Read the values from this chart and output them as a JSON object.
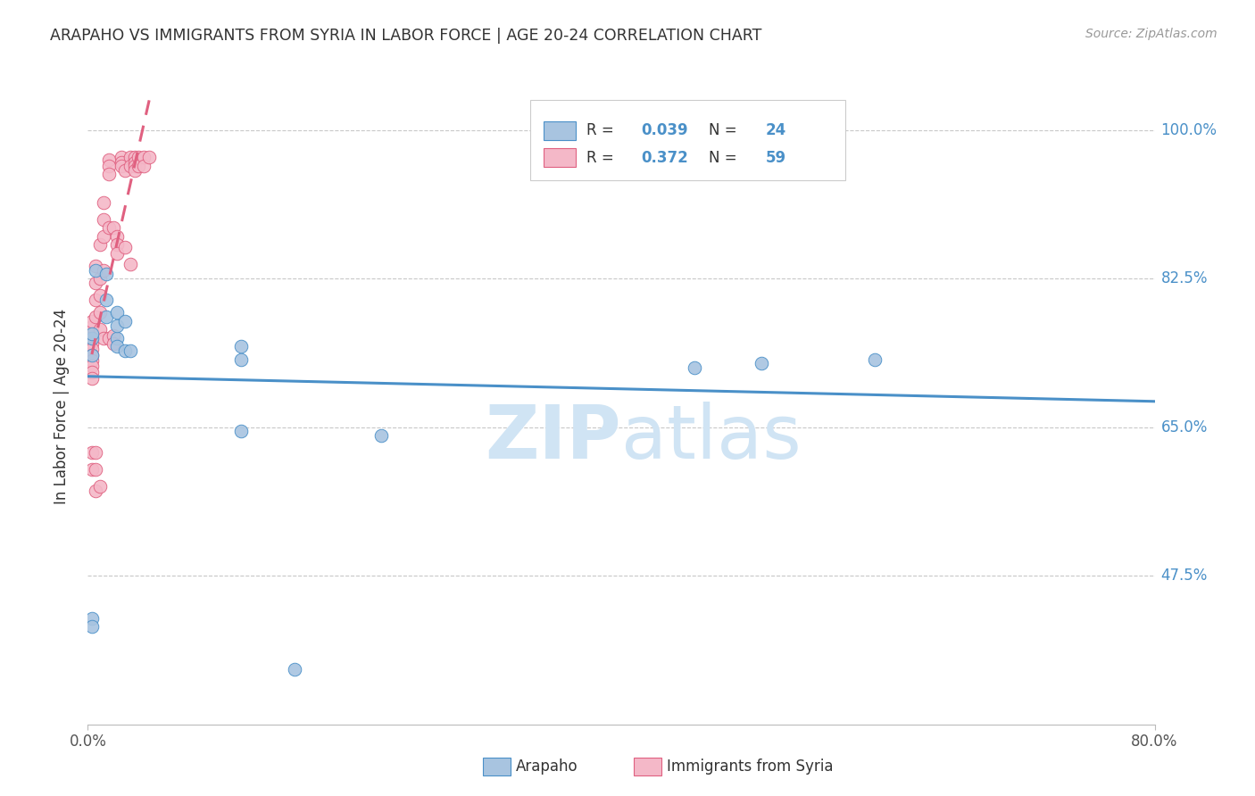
{
  "title": "ARAPAHO VS IMMIGRANTS FROM SYRIA IN LABOR FORCE | AGE 20-24 CORRELATION CHART",
  "source": "Source: ZipAtlas.com",
  "ylabel": "In Labor Force | Age 20-24",
  "legend_label_blue": "Arapaho",
  "legend_label_pink": "Immigrants from Syria",
  "R_blue": "0.039",
  "N_blue": "24",
  "R_pink": "0.372",
  "N_pink": "59",
  "blue_color": "#a8c4e0",
  "pink_color": "#f4b8c8",
  "trend_blue": "#4a90c8",
  "trend_pink": "#e06080",
  "watermark_color": "#d0e4f4",
  "xlim": [
    0.0,
    0.8
  ],
  "ylim": [
    0.3,
    1.05
  ],
  "y_ticks": [
    0.475,
    0.65,
    0.825,
    1.0
  ],
  "y_tick_labels": [
    "47.5%",
    "65.0%",
    "82.5%",
    "100.0%"
  ],
  "x_ticks": [
    0.0,
    0.8
  ],
  "x_tick_labels": [
    "0.0%",
    "80.0%"
  ],
  "blue_scatter_x": [
    0.003,
    0.003,
    0.003,
    0.006,
    0.014,
    0.014,
    0.014,
    0.022,
    0.022,
    0.022,
    0.022,
    0.028,
    0.028,
    0.032,
    0.115,
    0.115,
    0.115,
    0.22,
    0.455,
    0.505,
    0.59,
    0.003,
    0.003,
    0.155
  ],
  "blue_scatter_y": [
    0.755,
    0.76,
    0.735,
    0.835,
    0.83,
    0.8,
    0.78,
    0.755,
    0.77,
    0.785,
    0.745,
    0.74,
    0.775,
    0.74,
    0.73,
    0.645,
    0.745,
    0.64,
    0.72,
    0.725,
    0.73,
    0.425,
    0.415,
    0.365
  ],
  "pink_scatter_x": [
    0.003,
    0.003,
    0.003,
    0.003,
    0.003,
    0.003,
    0.003,
    0.003,
    0.003,
    0.003,
    0.003,
    0.003,
    0.003,
    0.006,
    0.006,
    0.006,
    0.006,
    0.006,
    0.006,
    0.006,
    0.009,
    0.009,
    0.009,
    0.009,
    0.009,
    0.009,
    0.012,
    0.012,
    0.012,
    0.012,
    0.012,
    0.016,
    0.016,
    0.016,
    0.016,
    0.016,
    0.019,
    0.019,
    0.019,
    0.022,
    0.022,
    0.022,
    0.025,
    0.025,
    0.025,
    0.028,
    0.028,
    0.032,
    0.032,
    0.032,
    0.035,
    0.035,
    0.035,
    0.035,
    0.038,
    0.038,
    0.042,
    0.042,
    0.046
  ],
  "pink_scatter_y": [
    0.755,
    0.762,
    0.768,
    0.775,
    0.748,
    0.742,
    0.735,
    0.728,
    0.722,
    0.715,
    0.708,
    0.6,
    0.62,
    0.84,
    0.82,
    0.8,
    0.78,
    0.62,
    0.6,
    0.575,
    0.865,
    0.825,
    0.805,
    0.785,
    0.765,
    0.58,
    0.915,
    0.895,
    0.875,
    0.835,
    0.755,
    0.965,
    0.958,
    0.948,
    0.885,
    0.755,
    0.758,
    0.748,
    0.885,
    0.875,
    0.865,
    0.855,
    0.968,
    0.962,
    0.958,
    0.952,
    0.862,
    0.842,
    0.968,
    0.958,
    0.968,
    0.962,
    0.958,
    0.952,
    0.968,
    0.958,
    0.968,
    0.958,
    0.968
  ]
}
